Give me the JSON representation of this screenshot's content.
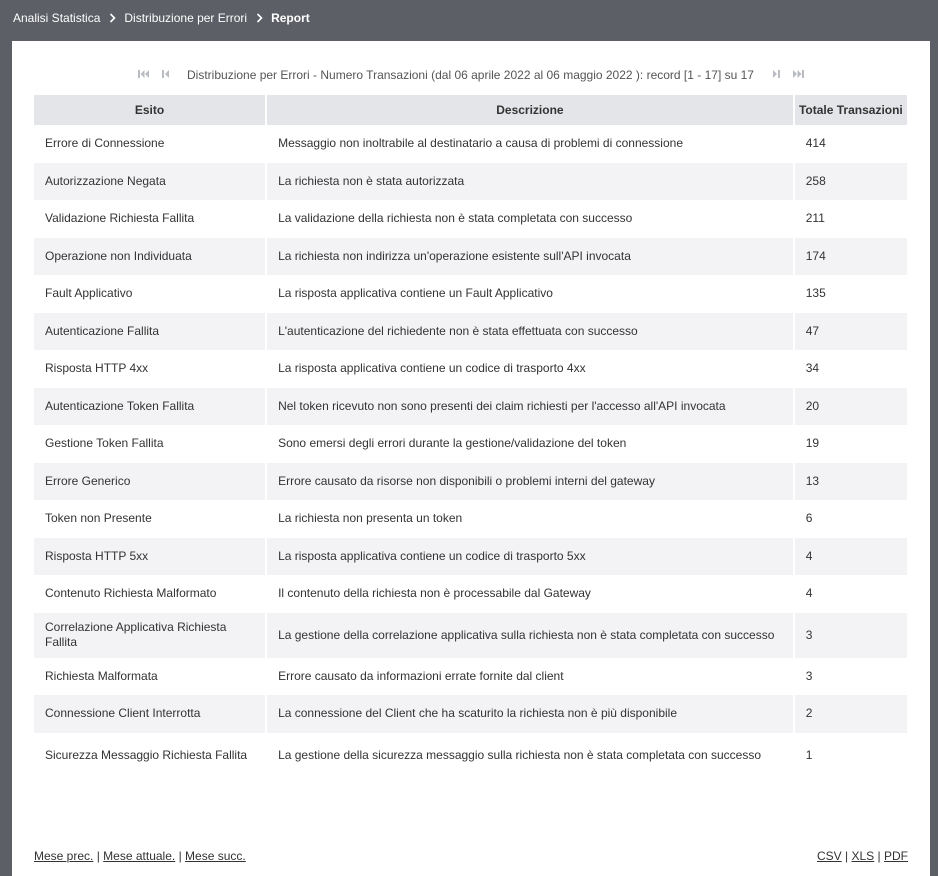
{
  "breadcrumb": [
    "Analisi Statistica",
    "Distribuzione per Errori",
    "Report"
  ],
  "pager": {
    "text": "Distribuzione per Errori - Numero Transazioni (dal 06 aprile 2022 al 06 maggio 2022 ): record [1 - 17] su 17"
  },
  "table": {
    "headers": [
      "Esito",
      "Descrizione",
      "Totale Transazioni"
    ],
    "rows": [
      [
        "Errore di Connessione",
        "Messaggio non inoltrabile al destinatario a causa di problemi di connessione",
        "414"
      ],
      [
        "Autorizzazione Negata",
        "La richiesta non è stata autorizzata",
        "258"
      ],
      [
        "Validazione Richiesta Fallita",
        "La validazione della richiesta non è stata completata con successo",
        "211"
      ],
      [
        "Operazione non Individuata",
        "La richiesta non indirizza un'operazione esistente sull'API invocata",
        "174"
      ],
      [
        "Fault Applicativo",
        "La risposta applicativa contiene un Fault Applicativo",
        "135"
      ],
      [
        "Autenticazione Fallita",
        "L'autenticazione del richiedente non è stata effettuata con successo",
        "47"
      ],
      [
        "Risposta HTTP 4xx",
        "La risposta applicativa contiene un codice di trasporto 4xx",
        "34"
      ],
      [
        "Autenticazione Token Fallita",
        "Nel token ricevuto non sono presenti dei claim richiesti per l'accesso all'API invocata",
        "20"
      ],
      [
        "Gestione Token Fallita",
        "Sono emersi degli errori durante la gestione/validazione del token",
        "19"
      ],
      [
        "Errore Generico",
        "Errore causato da risorse non disponibili o problemi interni del gateway",
        "13"
      ],
      [
        "Token non Presente",
        "La richiesta non presenta un token",
        "6"
      ],
      [
        "Risposta HTTP 5xx",
        "La risposta applicativa contiene un codice di trasporto 5xx",
        "4"
      ],
      [
        "Contenuto Richiesta Malformato",
        "Il contenuto della richiesta non è processabile dal Gateway",
        "4"
      ],
      [
        "Correlazione Applicativa Richiesta Fallita",
        "La gestione della correlazione applicativa sulla richiesta non è stata completata con successo",
        "3"
      ],
      [
        "Richiesta Malformata",
        "Errore causato da informazioni errate fornite dal client",
        "3"
      ],
      [
        "Connessione Client Interrotta",
        "La connessione del Client che ha scaturito la richiesta non è più disponibile",
        "2"
      ],
      [
        "Sicurezza Messaggio Richiesta Fallita",
        "La gestione della sicurezza messaggio sulla richiesta non è stata completata con successo",
        "1"
      ]
    ]
  },
  "footer": {
    "left": [
      "Mese prec.",
      "Mese attuale.",
      "Mese succ."
    ],
    "right": [
      "CSV",
      "XLS",
      "PDF"
    ],
    "separator": "|"
  }
}
